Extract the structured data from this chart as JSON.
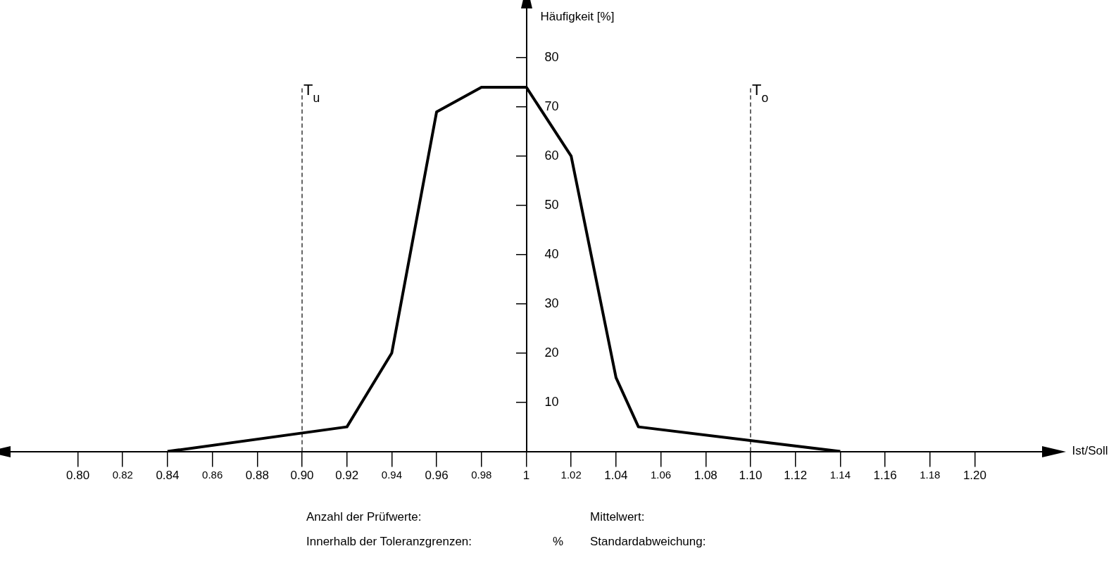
{
  "chart_data": {
    "type": "line",
    "ylabel": "Häufigkeit [%]",
    "xlabel": "Ist/Soll",
    "x": [
      0.84,
      0.92,
      0.94,
      0.96,
      0.98,
      1.0,
      1.02,
      1.04,
      1.05,
      1.14
    ],
    "series": [
      {
        "color": "#000000",
        "values": [
          0,
          5,
          20,
          69,
          74,
          74,
          60,
          15,
          5,
          0
        ]
      }
    ],
    "xlim": [
      0.77,
      1.23
    ],
    "xticks": [
      {
        "value": 0.8,
        "label": "0.80"
      },
      0.82,
      {
        "value": 0.84,
        "label": "0.84"
      },
      0.86,
      {
        "value": 0.88,
        "label": "0.88"
      },
      {
        "value": 0.9,
        "label": "0.90"
      },
      {
        "value": 0.92,
        "label": "0.92"
      },
      0.94,
      {
        "value": 0.96,
        "label": "0.96"
      },
      0.98,
      {
        "value": 1,
        "label": "1"
      },
      1.02,
      {
        "value": 1.04,
        "label": "1.04"
      },
      1.06,
      {
        "value": 1.08,
        "label": "1.08"
      },
      {
        "value": 1.1,
        "label": "1.10"
      },
      {
        "value": 1.12,
        "label": "1.12"
      },
      1.14,
      {
        "value": 1.16,
        "label": "1.16"
      },
      1.18,
      {
        "value": 1.2,
        "label": "1.20"
      }
    ],
    "ylim": [
      0,
      90
    ],
    "yticks": [
      10,
      20,
      30,
      40,
      50,
      60,
      70,
      80
    ],
    "ref_lines": [
      {
        "axis": "x",
        "value": 0.9,
        "label": "T$_{u}$",
        "line_style": "dashed"
      },
      {
        "axis": "x",
        "value": 1.1,
        "label": "T$_{o}$",
        "line_style": "dashed"
      }
    ],
    "annotations": [
      "Anzahl der Prüfwerte:",
      "Innerhalb der Toleranzgrenzen:",
      "%",
      "Mittelwert:",
      "Standardabweichung:"
    ],
    "grid": false,
    "legend": false,
    "marker": "none",
    "line_style": "solid"
  }
}
